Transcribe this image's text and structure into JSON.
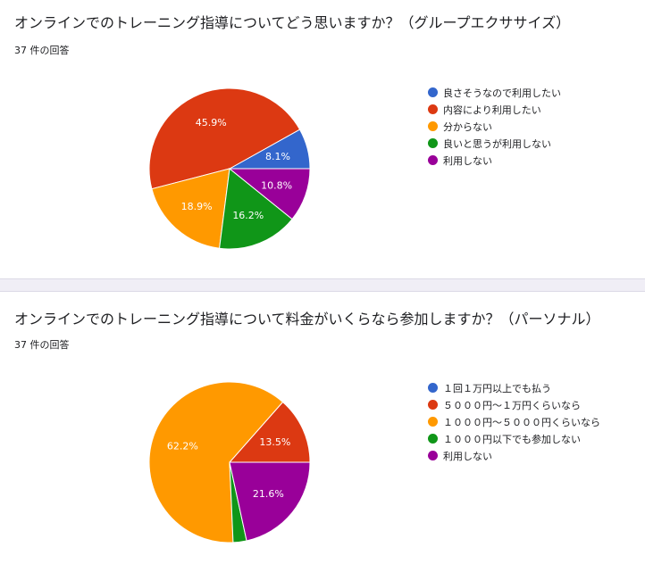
{
  "questions": [
    {
      "title": "オンラインでのトレーニング指導についてどう思いますか？（グループエクササイズ）",
      "count": "37 件の回答"
    },
    {
      "title": "オンラインでのトレーニング指導について料金がいくらなら参加しますか？（パーソナル）",
      "count": "37 件の回答"
    }
  ],
  "chart_data": [
    {
      "type": "pie",
      "categories": [
        "良さそうなので利用したい",
        "内容により利用したい",
        "分からない",
        "良いと思うが利用しない",
        "利用しない"
      ],
      "values": [
        8.1,
        45.9,
        18.9,
        16.2,
        10.8
      ],
      "labels": [
        "8.1%",
        "45.9%",
        "18.9%",
        "16.2%",
        "10.8%"
      ],
      "colors": [
        "#3366cc",
        "#dc3912",
        "#ff9900",
        "#109618",
        "#990099"
      ],
      "legend": "right"
    },
    {
      "type": "pie",
      "categories": [
        "１回１万円以上でも払う",
        "５０００円〜１万円くらいなら",
        "１０００円〜５０００円くらいなら",
        "１０００円以下でも参加しない",
        "利用しない"
      ],
      "values": [
        0,
        13.5,
        62.2,
        2.7,
        21.6
      ],
      "labels": [
        "",
        "13.5%",
        "62.2%",
        "",
        "21.6%"
      ],
      "colors": [
        "#3366cc",
        "#dc3912",
        "#ff9900",
        "#109618",
        "#990099"
      ],
      "legend": "right"
    }
  ]
}
